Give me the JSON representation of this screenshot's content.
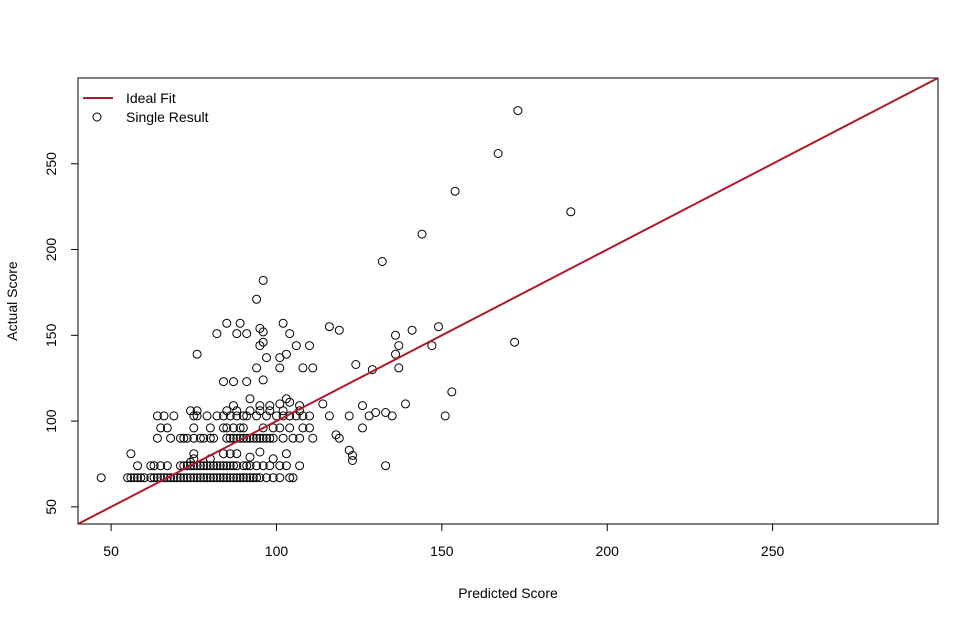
{
  "chart_data": {
    "type": "scatter",
    "xlabel": "Predicted Score",
    "ylabel": "Actual Score",
    "xlim": [
      40,
      300
    ],
    "ylim": [
      40,
      300
    ],
    "x_ticks": [
      50,
      100,
      150,
      200,
      250
    ],
    "y_ticks": [
      50,
      100,
      150,
      200,
      250
    ],
    "legend_position": "top-left",
    "legend": [
      {
        "label": "Ideal Fit",
        "kind": "line",
        "color": "#b2182b"
      },
      {
        "label": "Single Result",
        "kind": "open-circle",
        "color": "#000000"
      }
    ],
    "ideal_fit": {
      "slope": 1,
      "intercept": 0,
      "color": "#b2182b"
    },
    "points": [
      [
        47,
        67
      ],
      [
        55,
        67
      ],
      [
        56,
        67
      ],
      [
        57,
        67
      ],
      [
        58,
        67
      ],
      [
        59,
        67
      ],
      [
        60,
        67
      ],
      [
        62,
        67
      ],
      [
        63,
        67
      ],
      [
        64,
        67
      ],
      [
        65,
        67
      ],
      [
        66,
        67
      ],
      [
        67,
        67
      ],
      [
        68,
        67
      ],
      [
        69,
        67
      ],
      [
        70,
        67
      ],
      [
        71,
        67
      ],
      [
        72,
        67
      ],
      [
        73,
        67
      ],
      [
        74,
        67
      ],
      [
        75,
        67
      ],
      [
        76,
        67
      ],
      [
        77,
        67
      ],
      [
        78,
        67
      ],
      [
        79,
        67
      ],
      [
        80,
        67
      ],
      [
        81,
        67
      ],
      [
        82,
        67
      ],
      [
        83,
        67
      ],
      [
        84,
        67
      ],
      [
        85,
        67
      ],
      [
        86,
        67
      ],
      [
        87,
        67
      ],
      [
        88,
        67
      ],
      [
        89,
        67
      ],
      [
        90,
        67
      ],
      [
        91,
        67
      ],
      [
        92,
        67
      ],
      [
        93,
        67
      ],
      [
        94,
        67
      ],
      [
        95,
        67
      ],
      [
        97,
        67
      ],
      [
        99,
        67
      ],
      [
        101,
        67
      ],
      [
        104,
        67
      ],
      [
        105,
        67
      ],
      [
        56,
        81
      ],
      [
        58,
        74
      ],
      [
        62,
        74
      ],
      [
        63,
        74
      ],
      [
        65,
        74
      ],
      [
        67,
        74
      ],
      [
        71,
        74
      ],
      [
        72,
        74
      ],
      [
        73,
        74
      ],
      [
        74,
        74
      ],
      [
        75,
        74
      ],
      [
        76,
        74
      ],
      [
        77,
        74
      ],
      [
        78,
        74
      ],
      [
        79,
        74
      ],
      [
        80,
        74
      ],
      [
        81,
        74
      ],
      [
        82,
        74
      ],
      [
        83,
        74
      ],
      [
        84,
        74
      ],
      [
        85,
        74
      ],
      [
        86,
        74
      ],
      [
        87,
        74
      ],
      [
        88,
        74
      ],
      [
        90,
        74
      ],
      [
        91,
        74
      ],
      [
        92,
        74
      ],
      [
        94,
        74
      ],
      [
        96,
        74
      ],
      [
        98,
        74
      ],
      [
        101,
        74
      ],
      [
        103,
        74
      ],
      [
        107,
        74
      ],
      [
        133,
        74
      ],
      [
        74,
        76
      ],
      [
        75,
        78
      ],
      [
        75,
        81
      ],
      [
        80,
        78
      ],
      [
        84,
        81
      ],
      [
        86,
        81
      ],
      [
        88,
        81
      ],
      [
        92,
        79
      ],
      [
        95,
        82
      ],
      [
        99,
        78
      ],
      [
        103,
        81
      ],
      [
        64,
        90
      ],
      [
        68,
        90
      ],
      [
        71,
        90
      ],
      [
        72,
        90
      ],
      [
        73,
        90
      ],
      [
        75,
        90
      ],
      [
        77,
        90
      ],
      [
        78,
        90
      ],
      [
        80,
        90
      ],
      [
        81,
        90
      ],
      [
        85,
        90
      ],
      [
        86,
        90
      ],
      [
        87,
        90
      ],
      [
        88,
        90
      ],
      [
        89,
        90
      ],
      [
        90,
        90
      ],
      [
        91,
        90
      ],
      [
        92,
        90
      ],
      [
        93,
        90
      ],
      [
        94,
        90
      ],
      [
        95,
        90
      ],
      [
        96,
        90
      ],
      [
        97,
        90
      ],
      [
        98,
        90
      ],
      [
        99,
        90
      ],
      [
        102,
        90
      ],
      [
        105,
        90
      ],
      [
        107,
        90
      ],
      [
        111,
        90
      ],
      [
        119,
        90
      ],
      [
        65,
        96
      ],
      [
        67,
        96
      ],
      [
        75,
        96
      ],
      [
        80,
        96
      ],
      [
        84,
        96
      ],
      [
        85,
        96
      ],
      [
        87,
        96
      ],
      [
        89,
        96
      ],
      [
        90,
        96
      ],
      [
        96,
        96
      ],
      [
        99,
        96
      ],
      [
        101,
        96
      ],
      [
        104,
        96
      ],
      [
        108,
        96
      ],
      [
        110,
        96
      ],
      [
        126,
        96
      ],
      [
        64,
        103
      ],
      [
        66,
        103
      ],
      [
        69,
        103
      ],
      [
        75,
        103
      ],
      [
        76,
        103
      ],
      [
        79,
        103
      ],
      [
        82,
        103
      ],
      [
        84,
        103
      ],
      [
        86,
        103
      ],
      [
        88,
        103
      ],
      [
        90,
        103
      ],
      [
        91,
        103
      ],
      [
        94,
        103
      ],
      [
        97,
        103
      ],
      [
        100,
        103
      ],
      [
        102,
        103
      ],
      [
        104,
        103
      ],
      [
        106,
        103
      ],
      [
        108,
        103
      ],
      [
        110,
        103
      ],
      [
        116,
        103
      ],
      [
        122,
        103
      ],
      [
        128,
        103
      ],
      [
        130,
        105
      ],
      [
        133,
        105
      ],
      [
        135,
        103
      ],
      [
        151,
        103
      ],
      [
        74,
        106
      ],
      [
        76,
        106
      ],
      [
        85,
        106
      ],
      [
        88,
        106
      ],
      [
        92,
        106
      ],
      [
        95,
        106
      ],
      [
        98,
        106
      ],
      [
        102,
        106
      ],
      [
        107,
        106
      ],
      [
        87,
        109
      ],
      [
        95,
        109
      ],
      [
        98,
        109
      ],
      [
        101,
        110
      ],
      [
        104,
        111
      ],
      [
        107,
        109
      ],
      [
        114,
        110
      ],
      [
        126,
        109
      ],
      [
        139,
        110
      ],
      [
        92,
        113
      ],
      [
        103,
        113
      ],
      [
        153,
        117
      ],
      [
        84,
        123
      ],
      [
        87,
        123
      ],
      [
        91,
        123
      ],
      [
        96,
        124
      ],
      [
        101,
        131
      ],
      [
        108,
        131
      ],
      [
        111,
        131
      ],
      [
        94,
        131
      ],
      [
        129,
        130
      ],
      [
        137,
        131
      ],
      [
        124,
        133
      ],
      [
        97,
        137
      ],
      [
        101,
        137
      ],
      [
        103,
        139
      ],
      [
        106,
        144
      ],
      [
        110,
        144
      ],
      [
        136,
        139
      ],
      [
        137,
        144
      ],
      [
        147,
        144
      ],
      [
        172,
        146
      ],
      [
        76,
        139
      ],
      [
        95,
        144
      ],
      [
        96,
        146
      ],
      [
        88,
        151
      ],
      [
        82,
        151
      ],
      [
        96,
        152
      ],
      [
        95,
        154
      ],
      [
        91,
        151
      ],
      [
        104,
        151
      ],
      [
        85,
        157
      ],
      [
        89,
        157
      ],
      [
        102,
        157
      ],
      [
        116,
        155
      ],
      [
        119,
        153
      ],
      [
        136,
        150
      ],
      [
        141,
        153
      ],
      [
        149,
        155
      ],
      [
        94,
        171
      ],
      [
        96,
        182
      ],
      [
        132,
        193
      ],
      [
        144,
        209
      ],
      [
        154,
        234
      ],
      [
        167,
        256
      ],
      [
        173,
        281
      ],
      [
        189,
        222
      ],
      [
        118,
        92
      ],
      [
        122,
        83
      ],
      [
        123,
        80
      ],
      [
        123,
        77
      ]
    ]
  }
}
